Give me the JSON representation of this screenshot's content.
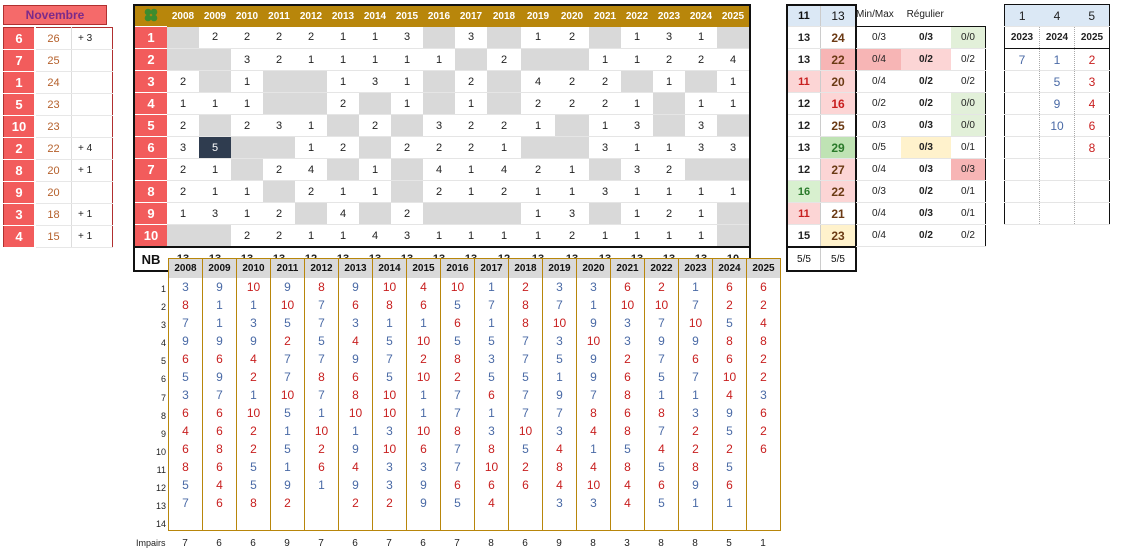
{
  "title": "Novembre",
  "left_rows": [
    {
      "num": "6",
      "val": "26",
      "bonus": "+ 3"
    },
    {
      "num": "7",
      "val": "25",
      "bonus": ""
    },
    {
      "num": "1",
      "val": "24",
      "bonus": ""
    },
    {
      "num": "5",
      "val": "23",
      "bonus": ""
    },
    {
      "num": "10",
      "val": "23",
      "bonus": ""
    },
    {
      "num": "2",
      "val": "22",
      "bonus": "+ 4"
    },
    {
      "num": "8",
      "val": "20",
      "bonus": "+ 1"
    },
    {
      "num": "9",
      "val": "20",
      "bonus": ""
    },
    {
      "num": "3",
      "val": "18",
      "bonus": "+ 1"
    },
    {
      "num": "4",
      "val": "15",
      "bonus": "+ 1"
    }
  ],
  "clover_icon": "clover-icon",
  "years": [
    "2008",
    "2009",
    "2010",
    "2011",
    "2012",
    "2013",
    "2014",
    "2015",
    "2016",
    "2017",
    "2018",
    "2019",
    "2020",
    "2021",
    "2022",
    "2023",
    "2024",
    "2025"
  ],
  "grid_rows": [
    {
      "label": "1",
      "cells": [
        "",
        "2",
        "2",
        "2",
        "2",
        "1",
        "1",
        "3",
        "",
        "3",
        "",
        "1",
        "2",
        "",
        "1",
        "3",
        "1",
        ""
      ]
    },
    {
      "label": "2",
      "cells": [
        "",
        "",
        "3",
        "2",
        "1",
        "1",
        "1",
        "1",
        "1",
        "",
        "2",
        "",
        "",
        "1",
        "1",
        "2",
        "2",
        "4"
      ]
    },
    {
      "label": "3",
      "cells": [
        "2",
        "",
        "1",
        "",
        "",
        "1",
        "3",
        "1",
        "",
        "2",
        "",
        "4",
        "2",
        "2",
        "",
        "1",
        "",
        "1"
      ]
    },
    {
      "label": "4",
      "cells": [
        "1",
        "1",
        "1",
        "",
        "",
        "2",
        "",
        "1",
        "",
        "1",
        "",
        "2",
        "2",
        "2",
        "1",
        "",
        "1",
        "1"
      ]
    },
    {
      "label": "5",
      "cells": [
        "2",
        "",
        "2",
        "3",
        "1",
        "",
        "2",
        "",
        "3",
        "2",
        "2",
        "1",
        "",
        "1",
        "3",
        "",
        "3",
        ""
      ]
    },
    {
      "label": "6",
      "cells": [
        "3",
        "5",
        "",
        "",
        "1",
        "2",
        "",
        "2",
        "2",
        "2",
        "1",
        "",
        "",
        "3",
        "1",
        "1",
        "3",
        "3"
      ]
    },
    {
      "label": "7",
      "cells": [
        "2",
        "1",
        "",
        "2",
        "4",
        "",
        "1",
        "",
        "4",
        "1",
        "4",
        "2",
        "1",
        "",
        "3",
        "2",
        "",
        ""
      ]
    },
    {
      "label": "8",
      "cells": [
        "2",
        "1",
        "1",
        "",
        "2",
        "1",
        "1",
        "",
        "2",
        "1",
        "2",
        "1",
        "1",
        "3",
        "1",
        "1",
        "1",
        "1"
      ]
    },
    {
      "label": "9",
      "cells": [
        "1",
        "3",
        "1",
        "2",
        "",
        "4",
        "",
        "2",
        "",
        "",
        "",
        "1",
        "3",
        "",
        "1",
        "2",
        "1",
        ""
      ]
    },
    {
      "label": "10",
      "cells": [
        "",
        "",
        "2",
        "2",
        "1",
        "1",
        "4",
        "3",
        "1",
        "1",
        "1",
        "1",
        "2",
        "1",
        "1",
        "1",
        "1",
        ""
      ]
    }
  ],
  "nb_label": "NB",
  "nb_values": [
    "13",
    "13",
    "13",
    "13",
    "12",
    "13",
    "13",
    "13",
    "13",
    "13",
    "12",
    "13",
    "13",
    "13",
    "13",
    "13",
    "13",
    "10"
  ],
  "stats_header": {
    "a": "11",
    "b": "13"
  },
  "stats_rows": [
    {
      "a": "13",
      "b": "24"
    },
    {
      "a": "13",
      "b": "22"
    },
    {
      "a": "11",
      "b": "20"
    },
    {
      "a": "12",
      "b": "16"
    },
    {
      "a": "12",
      "b": "25"
    },
    {
      "a": "13",
      "b": "29"
    },
    {
      "a": "12",
      "b": "27"
    },
    {
      "a": "16",
      "b": "22"
    },
    {
      "a": "11",
      "b": "21"
    },
    {
      "a": "15",
      "b": "23"
    }
  ],
  "stats_footer": {
    "a": "5/5",
    "b": "5/5"
  },
  "minmax_header": {
    "a": "Min/Max",
    "b": "Régulier"
  },
  "minmax_rows": [
    {
      "a": "0/3",
      "b": "0/3",
      "c": "0/0"
    },
    {
      "a": "0/4",
      "b": "0/2",
      "c": "0/2"
    },
    {
      "a": "0/4",
      "b": "0/2",
      "c": "0/2"
    },
    {
      "a": "0/2",
      "b": "0/2",
      "c": "0/0"
    },
    {
      "a": "0/3",
      "b": "0/3",
      "c": "0/0"
    },
    {
      "a": "0/5",
      "b": "0/3",
      "c": "0/1"
    },
    {
      "a": "0/4",
      "b": "0/3",
      "c": "0/3"
    },
    {
      "a": "0/3",
      "b": "0/2",
      "c": "0/1"
    },
    {
      "a": "0/4",
      "b": "0/3",
      "c": "0/1"
    },
    {
      "a": "0/4",
      "b": "0/2",
      "c": "0/2"
    }
  ],
  "right_top": [
    "1",
    "4",
    "5"
  ],
  "right_years": [
    "2023",
    "2024",
    "2025"
  ],
  "right_rows": [
    [
      "7",
      "1",
      "2"
    ],
    [
      "",
      "5",
      "3"
    ],
    [
      "",
      "9",
      "4"
    ],
    [
      "",
      "10",
      "6"
    ],
    [
      "",
      "",
      "8"
    ],
    [
      "",
      "",
      ""
    ],
    [
      "",
      "",
      ""
    ],
    [
      "",
      "",
      ""
    ]
  ],
  "bottom_years": [
    "2008",
    "2009",
    "2010",
    "2011",
    "2012",
    "2013",
    "2014",
    "2015",
    "2016",
    "2017",
    "2018",
    "2019",
    "2020",
    "2021",
    "2022",
    "2023",
    "2024",
    "2025"
  ],
  "bottom_rownums": [
    "1",
    "2",
    "3",
    "4",
    "5",
    "6",
    "7",
    "8",
    "9",
    "10",
    "11",
    "12",
    "13",
    "14"
  ],
  "bottom_rows": [
    [
      "3",
      "9",
      "10",
      "9",
      "8",
      "9",
      "10",
      "4",
      "10",
      "1",
      "2",
      "3",
      "3",
      "6",
      "2",
      "1",
      "6",
      "6"
    ],
    [
      "8",
      "1",
      "1",
      "10",
      "7",
      "6",
      "8",
      "6",
      "5",
      "7",
      "8",
      "7",
      "1",
      "10",
      "10",
      "7",
      "2",
      "2"
    ],
    [
      "7",
      "1",
      "3",
      "5",
      "7",
      "3",
      "1",
      "1",
      "6",
      "1",
      "8",
      "10",
      "9",
      "3",
      "7",
      "10",
      "5",
      "4"
    ],
    [
      "9",
      "9",
      "9",
      "2",
      "5",
      "4",
      "5",
      "10",
      "5",
      "5",
      "7",
      "3",
      "10",
      "3",
      "9",
      "9",
      "8",
      "8"
    ],
    [
      "6",
      "6",
      "4",
      "7",
      "7",
      "9",
      "7",
      "2",
      "8",
      "3",
      "7",
      "5",
      "9",
      "2",
      "7",
      "6",
      "6",
      "2"
    ],
    [
      "5",
      "9",
      "2",
      "7",
      "8",
      "6",
      "5",
      "10",
      "2",
      "5",
      "5",
      "1",
      "9",
      "6",
      "5",
      "7",
      "10",
      "2"
    ],
    [
      "3",
      "7",
      "1",
      "10",
      "7",
      "8",
      "10",
      "1",
      "7",
      "6",
      "7",
      "9",
      "7",
      "8",
      "1",
      "1",
      "4",
      "3"
    ],
    [
      "6",
      "6",
      "10",
      "5",
      "1",
      "10",
      "10",
      "1",
      "7",
      "1",
      "7",
      "7",
      "8",
      "6",
      "8",
      "3",
      "9",
      "6"
    ],
    [
      "4",
      "6",
      "2",
      "1",
      "10",
      "1",
      "3",
      "10",
      "8",
      "3",
      "10",
      "3",
      "4",
      "8",
      "7",
      "2",
      "5",
      "2"
    ],
    [
      "6",
      "8",
      "2",
      "5",
      "2",
      "9",
      "10",
      "6",
      "7",
      "8",
      "5",
      "4",
      "1",
      "5",
      "4",
      "2",
      "2",
      "6"
    ],
    [
      "8",
      "6",
      "5",
      "1",
      "6",
      "4",
      "3",
      "3",
      "7",
      "10",
      "2",
      "8",
      "4",
      "8",
      "5",
      "8",
      "5",
      ""
    ],
    [
      "5",
      "4",
      "5",
      "9",
      "1",
      "9",
      "3",
      "9",
      "6",
      "6",
      "6",
      "4",
      "10",
      "4",
      "6",
      "9",
      "6",
      ""
    ],
    [
      "7",
      "6",
      "8",
      "2",
      "",
      "2",
      "2",
      "9",
      "5",
      "4",
      "",
      "3",
      "3",
      "4",
      "5",
      "1",
      "1",
      ""
    ],
    [
      "",
      "",
      "",
      "",
      "",
      "",
      "",
      "",
      "",
      "",
      "",
      "",
      "",
      "",
      "",
      "",
      "",
      ""
    ]
  ],
  "impairs_label": "Impairs",
  "impairs_values": [
    "7",
    "6",
    "6",
    "9",
    "7",
    "6",
    "7",
    "6",
    "7",
    "8",
    "6",
    "9",
    "8",
    "3",
    "8",
    "8",
    "5",
    "1"
  ],
  "colors": {
    "red": "#f25c5c",
    "gold": "#b8860b",
    "blue": "#4a6aa6",
    "dark_red": "#c81e1e"
  }
}
